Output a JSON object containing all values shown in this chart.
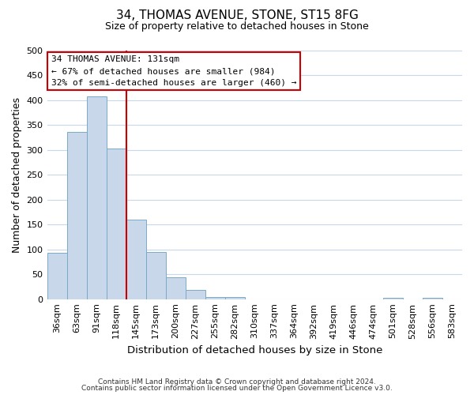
{
  "title": "34, THOMAS AVENUE, STONE, ST15 8FG",
  "subtitle": "Size of property relative to detached houses in Stone",
  "xlabel": "Distribution of detached houses by size in Stone",
  "ylabel": "Number of detached properties",
  "bar_color": "#c8d8ea",
  "bar_edge_color": "#7aaac8",
  "categories": [
    "36sqm",
    "63sqm",
    "91sqm",
    "118sqm",
    "145sqm",
    "173sqm",
    "200sqm",
    "227sqm",
    "255sqm",
    "282sqm",
    "310sqm",
    "337sqm",
    "364sqm",
    "392sqm",
    "419sqm",
    "446sqm",
    "474sqm",
    "501sqm",
    "528sqm",
    "556sqm",
    "583sqm"
  ],
  "values": [
    93,
    337,
    408,
    303,
    160,
    95,
    44,
    18,
    4,
    4,
    0,
    0,
    0,
    0,
    0,
    0,
    0,
    3,
    0,
    3,
    0
  ],
  "ylim": [
    0,
    500
  ],
  "yticks": [
    0,
    50,
    100,
    150,
    200,
    250,
    300,
    350,
    400,
    450,
    500
  ],
  "vline_x": 3.5,
  "vline_color": "#cc0000",
  "annotation_title": "34 THOMAS AVENUE: 131sqm",
  "annotation_line1": "← 67% of detached houses are smaller (984)",
  "annotation_line2": "32% of semi-detached houses are larger (460) →",
  "annotation_box_color": "#ffffff",
  "annotation_box_edge": "#cc0000",
  "footer1": "Contains HM Land Registry data © Crown copyright and database right 2024.",
  "footer2": "Contains public sector information licensed under the Open Government Licence v3.0.",
  "background_color": "#ffffff",
  "grid_color": "#c8d8e8"
}
